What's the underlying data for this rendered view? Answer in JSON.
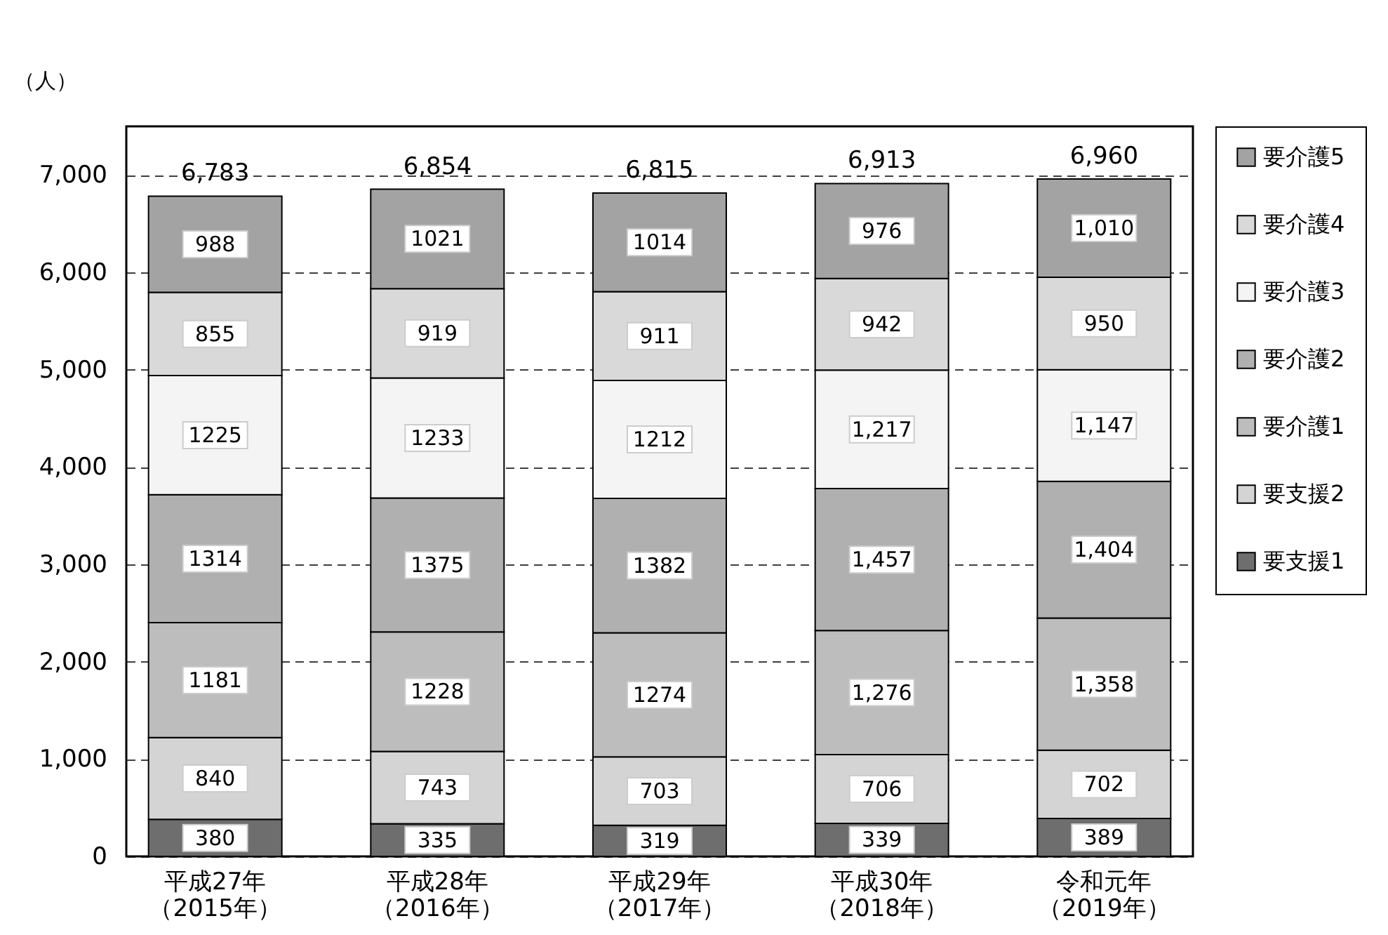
{
  "chart_data": {
    "type": "bar",
    "stacked": true,
    "ylabel": "（人）",
    "categories": [
      "平成27年（2015年）",
      "平成28年（2016年）",
      "平成29年（2017年）",
      "平成30年（2018年）",
      "令和元年（2019年）"
    ],
    "series": [
      {
        "name": "要支援1",
        "color": "#6e6e6e",
        "values": [
          380,
          335,
          319,
          339,
          389
        ],
        "value_labels": [
          "380",
          "335",
          "319",
          "339",
          "389"
        ]
      },
      {
        "name": "要支援2",
        "color": "#d4d4d4",
        "values": [
          840,
          743,
          703,
          706,
          702
        ],
        "value_labels": [
          "840",
          "743",
          "703",
          "706",
          "702"
        ]
      },
      {
        "name": "要介護1",
        "color": "#bdbdbd",
        "values": [
          1181,
          1228,
          1274,
          1276,
          1358
        ],
        "value_labels": [
          "1181",
          "1228",
          "1274",
          "1,276",
          "1,358"
        ]
      },
      {
        "name": "要介護2",
        "color": "#b0b0b0",
        "values": [
          1314,
          1375,
          1382,
          1457,
          1404
        ],
        "value_labels": [
          "1314",
          "1375",
          "1382",
          "1,457",
          "1,404"
        ]
      },
      {
        "name": "要介護3",
        "color": "#f4f4f4",
        "values": [
          1225,
          1233,
          1212,
          1217,
          1147
        ],
        "value_labels": [
          "1225",
          "1233",
          "1212",
          "1,217",
          "1,147"
        ]
      },
      {
        "name": "要介護4",
        "color": "#d9d9d9",
        "values": [
          855,
          919,
          911,
          942,
          950
        ],
        "value_labels": [
          "855",
          "919",
          "911",
          "942",
          "950"
        ]
      },
      {
        "name": "要介護5",
        "color": "#a3a3a3",
        "values": [
          988,
          1021,
          1014,
          976,
          1010
        ],
        "value_labels": [
          "988",
          "1021",
          "1014",
          "976",
          "1,010"
        ]
      }
    ],
    "totals": [
      "6,783",
      "6,854",
      "6,815",
      "6,913",
      "6,960"
    ],
    "ylim": [
      0,
      7500
    ],
    "yticks": [
      0,
      {
        "value": 1000,
        "label": "1,000"
      },
      {
        "value": 2000,
        "label": "2,000"
      },
      {
        "value": 3000,
        "label": "3,000"
      },
      {
        "value": 4000,
        "label": "4,000"
      },
      {
        "value": 5000,
        "label": "5,000"
      },
      {
        "value": 6000,
        "label": "6,000"
      },
      {
        "value": 7000,
        "label": "7,000"
      }
    ],
    "grid": "y",
    "legend": "right"
  }
}
